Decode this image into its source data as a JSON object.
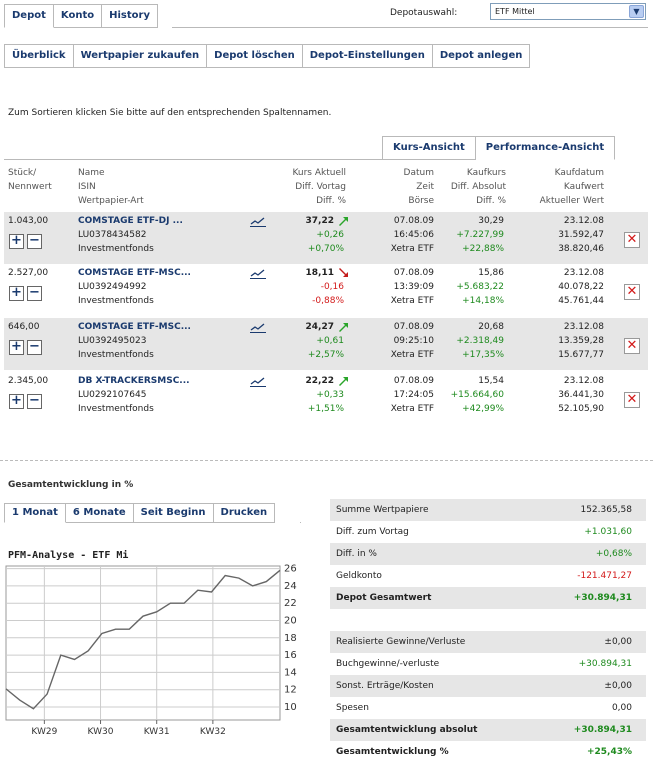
{
  "top_tabs": [
    "Depot",
    "Konto",
    "History"
  ],
  "depot_select": {
    "label": "Depotauswahl:",
    "value": "ETF Mittel"
  },
  "sub_tabs": [
    "Überblick",
    "Wertpapier zukaufen",
    "Depot löschen",
    "Depot-Einstellungen",
    "Depot anlegen"
  ],
  "hint": "Zum Sortieren klicken Sie bitte auf den entsprechenden Spaltennamen.",
  "view_tabs": [
    "Kurs-Ansicht",
    "Performance-Ansicht"
  ],
  "headers": {
    "col1": [
      "Stück/",
      "Nennwert"
    ],
    "col2": [
      "Name",
      "ISIN",
      "Wertpapier-Art"
    ],
    "col3": [
      "Kurs Aktuell",
      "Diff. Vortag",
      "Diff. %"
    ],
    "col4": [
      "Datum",
      "Zeit",
      "Börse"
    ],
    "col5": [
      "Kaufkurs",
      "Diff. Absolut",
      "Diff. %"
    ],
    "col6": [
      "Kaufdatum",
      "Kaufwert",
      "Aktueller Wert"
    ]
  },
  "rows": [
    {
      "qty": "1.043,00",
      "name": "COMSTAGE ETF-DJ ...",
      "isin": "LU0378434582",
      "type": "Investmentfonds",
      "kurs": "37,22",
      "trend": "up",
      "diff_vortag": "+0,26",
      "diff_vortag_pct": "+0,70%",
      "vortag_sign": "pos",
      "datum": "07.08.09",
      "zeit": "16:45:06",
      "boerse": "Xetra ETF",
      "kaufkurs": "30,29",
      "diff_abs": "+7.227,99",
      "diff_pct": "+22,88%",
      "kaufdatum": "23.12.08",
      "kaufwert": "31.592,47",
      "akt_wert": "38.820,46"
    },
    {
      "qty": "2.527,00",
      "name": "COMSTAGE ETF-MSC...",
      "isin": "LU0392494992",
      "type": "Investmentfonds",
      "kurs": "18,11",
      "trend": "down",
      "diff_vortag": "-0,16",
      "diff_vortag_pct": "-0,88%",
      "vortag_sign": "neg",
      "datum": "07.08.09",
      "zeit": "13:39:09",
      "boerse": "Xetra ETF",
      "kaufkurs": "15,86",
      "diff_abs": "+5.683,22",
      "diff_pct": "+14,18%",
      "kaufdatum": "23.12.08",
      "kaufwert": "40.078,22",
      "akt_wert": "45.761,44"
    },
    {
      "qty": "646,00",
      "name": "COMSTAGE ETF-MSC...",
      "isin": "LU0392495023",
      "type": "Investmentfonds",
      "kurs": "24,27",
      "trend": "up",
      "diff_vortag": "+0,61",
      "diff_vortag_pct": "+2,57%",
      "vortag_sign": "pos",
      "datum": "07.08.09",
      "zeit": "09:25:10",
      "boerse": "Xetra ETF",
      "kaufkurs": "20,68",
      "diff_abs": "+2.318,49",
      "diff_pct": "+17,35%",
      "kaufdatum": "23.12.08",
      "kaufwert": "13.359,28",
      "akt_wert": "15.677,77"
    },
    {
      "qty": "2.345,00",
      "name": "DB X-TRACKERSMSC...",
      "isin": "LU0292107645",
      "type": "Investmentfonds",
      "kurs": "22,22",
      "trend": "up",
      "diff_vortag": "+0,33",
      "diff_vortag_pct": "+1,51%",
      "vortag_sign": "pos",
      "datum": "07.08.09",
      "zeit": "17:24:05",
      "boerse": "Xetra ETF",
      "kaufkurs": "15,54",
      "diff_abs": "+15.664,60",
      "diff_pct": "+42,99%",
      "kaufdatum": "23.12.08",
      "kaufwert": "36.441,30",
      "akt_wert": "52.105,90"
    }
  ],
  "section_title": "Gesamtentwicklung in %",
  "range_tabs": [
    "1 Monat",
    "6 Monate",
    "Seit Beginn",
    "Drucken"
  ],
  "chart_title": "PFM-Analyse - ETF Mi",
  "chart_data": {
    "type": "line",
    "x_ticks": [
      "KW29",
      "KW30",
      "KW31",
      "KW32"
    ],
    "y_ticks": [
      10,
      12,
      14,
      16,
      18,
      20,
      22,
      24,
      26
    ],
    "ylim": [
      8.5,
      26.3
    ],
    "grid": true,
    "series": [
      {
        "values": [
          12.1,
          10.8,
          9.8,
          11.5,
          16.0,
          15.5,
          16.5,
          18.5,
          19.0,
          19.0,
          20.5,
          21.0,
          22.0,
          22.0,
          23.5,
          23.3,
          25.2,
          24.9,
          24.0,
          24.5,
          25.8
        ]
      }
    ]
  },
  "summary": [
    {
      "label": "Summe Wertpapiere",
      "value": "152.365,58",
      "sign": "",
      "shade": true,
      "bold": false
    },
    {
      "label": "Diff. zum Vortag",
      "value": "+1.031,60",
      "sign": "pos",
      "shade": false,
      "bold": false
    },
    {
      "label": "Diff. in %",
      "value": "+0,68%",
      "sign": "pos",
      "shade": true,
      "bold": false
    },
    {
      "label": "Geldkonto",
      "value": "-121.471,27",
      "sign": "neg",
      "shade": false,
      "bold": false
    },
    {
      "label": "Depot Gesamtwert",
      "value": "+30.894,31",
      "sign": "pos",
      "shade": true,
      "bold": true
    },
    {
      "label": "Realisierte Gewinne/Verluste",
      "value": "±0,00",
      "sign": "",
      "shade": true,
      "bold": false
    },
    {
      "label": "Buchgewinne/-verluste",
      "value": "+30.894,31",
      "sign": "pos",
      "shade": false,
      "bold": false
    },
    {
      "label": "Sonst. Erträge/Kosten",
      "value": "±0,00",
      "sign": "",
      "shade": true,
      "bold": false
    },
    {
      "label": "Spesen",
      "value": "0,00",
      "sign": "",
      "shade": false,
      "bold": false
    },
    {
      "label": "Gesamtentwicklung absolut",
      "value": "+30.894,31",
      "sign": "pos",
      "shade": true,
      "bold": true
    },
    {
      "label": "Gesamtentwicklung %",
      "value": "+25,43%",
      "sign": "pos",
      "shade": false,
      "bold": true
    }
  ]
}
